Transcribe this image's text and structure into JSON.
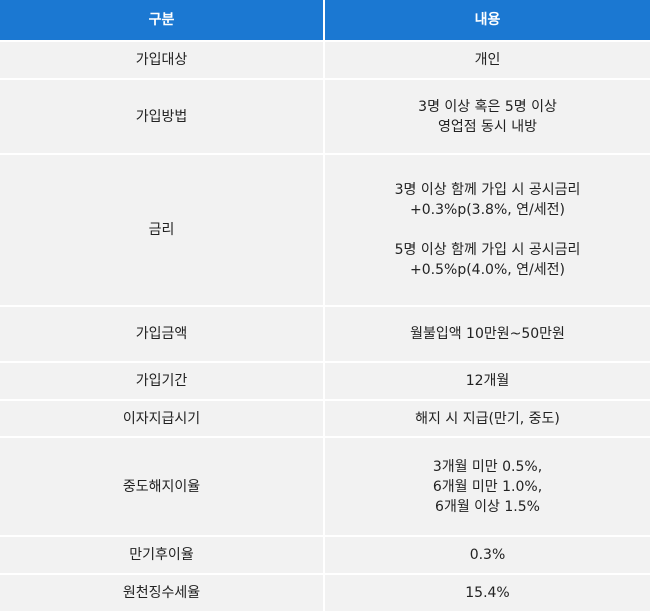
{
  "header": {
    "col1": "구분",
    "col2": "내용"
  },
  "rows": [
    {
      "label": "가입대상",
      "lines": [
        "개인"
      ]
    },
    {
      "label": "가입방법",
      "lines": [
        "3명 이상 혹은 5명 이상",
        "영업점 동시 내방"
      ]
    },
    {
      "label": "금리",
      "lines": [
        "3명 이상 함께 가입 시 공시금리",
        "+0.3%p(3.8%, 연/세전)",
        "",
        "5명 이상 함께 가입 시 공시금리",
        "+0.5%p(4.0%, 연/세전)"
      ]
    },
    {
      "label": "가입금액",
      "lines": [
        "월불입액 10만원~50만원"
      ]
    },
    {
      "label": "가입기간",
      "lines": [
        "12개월"
      ]
    },
    {
      "label": "이자지급시기",
      "lines": [
        "해지 시 지급(만기, 중도)"
      ]
    },
    {
      "label": "중도해지이율",
      "lines": [
        "3개월 미만 0.5%,",
        "6개월 미만 1.0%,",
        "6개월 이상 1.5%"
      ]
    },
    {
      "label": "만기후이율",
      "lines": [
        "0.3%"
      ]
    },
    {
      "label": "원천징수세율",
      "lines": [
        "15.4%"
      ]
    }
  ],
  "colors": {
    "header_bg": "#1b78d2",
    "row_bg": "#f2f2f2"
  }
}
